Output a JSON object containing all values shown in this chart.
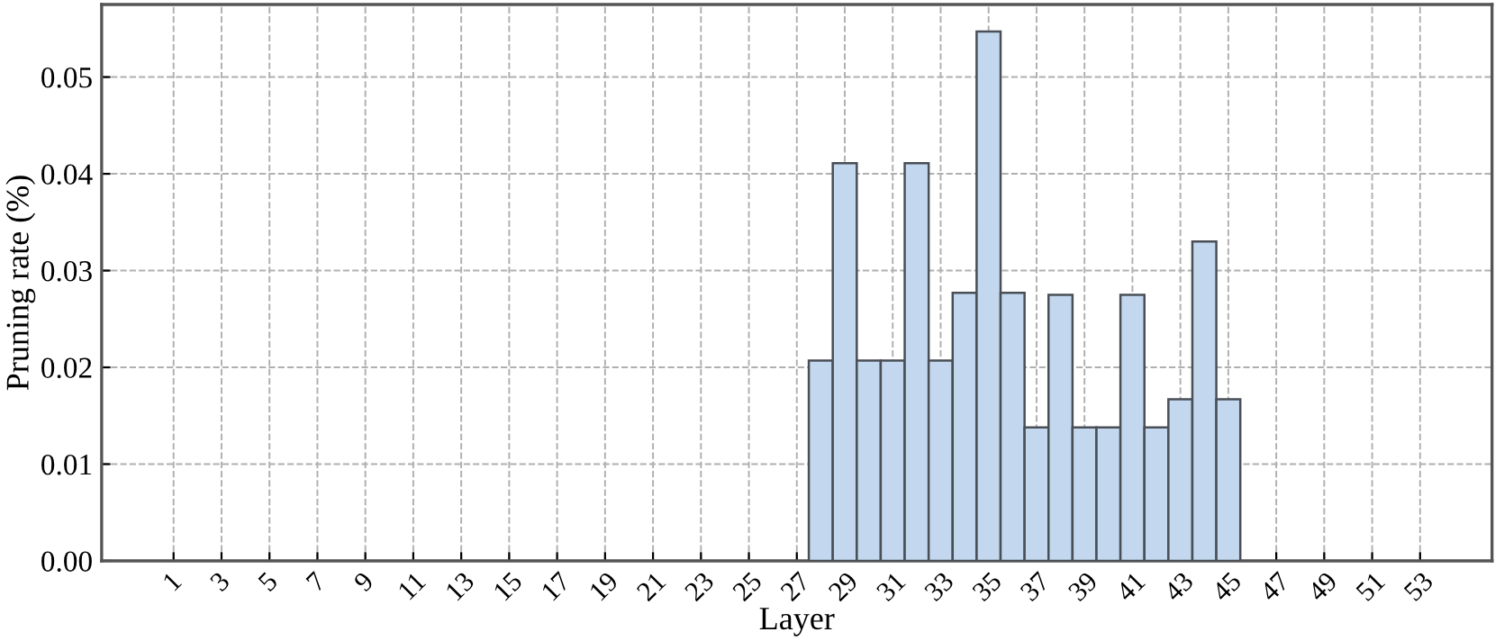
{
  "chart_data": {
    "type": "bar",
    "xlabel": "Layer",
    "ylabel": "Pruning rate (%)",
    "x": [
      28,
      29,
      30,
      31,
      32,
      33,
      34,
      35,
      36,
      37,
      38,
      39,
      40,
      41,
      42,
      43,
      44,
      45
    ],
    "series": [
      {
        "color": "#c3d8ee",
        "values": [
          0.0207,
          0.0411,
          0.0207,
          0.0207,
          0.0411,
          0.0207,
          0.0277,
          0.0547,
          0.0277,
          0.0138,
          0.0275,
          0.0138,
          0.0138,
          0.0275,
          0.0138,
          0.0167,
          0.033,
          0.0167
        ]
      }
    ],
    "xlim": [
      -2,
      56
    ],
    "xticks": [
      1,
      3,
      5,
      7,
      9,
      11,
      13,
      15,
      17,
      19,
      21,
      23,
      25,
      27,
      29,
      31,
      33,
      35,
      37,
      39,
      41,
      43,
      45,
      47,
      49,
      51,
      53
    ],
    "ylim": [
      0,
      0.0575
    ],
    "yticks": [
      {
        "value": 0,
        "label": "0.00"
      },
      {
        "value": 0.01,
        "label": "0.01"
      },
      {
        "value": 0.02,
        "label": "0.02"
      },
      {
        "value": 0.03,
        "label": "0.03"
      },
      {
        "value": 0.04,
        "label": "0.04"
      },
      {
        "value": 0.05,
        "label": "0.05"
      }
    ],
    "grid": true,
    "legend": false
  }
}
